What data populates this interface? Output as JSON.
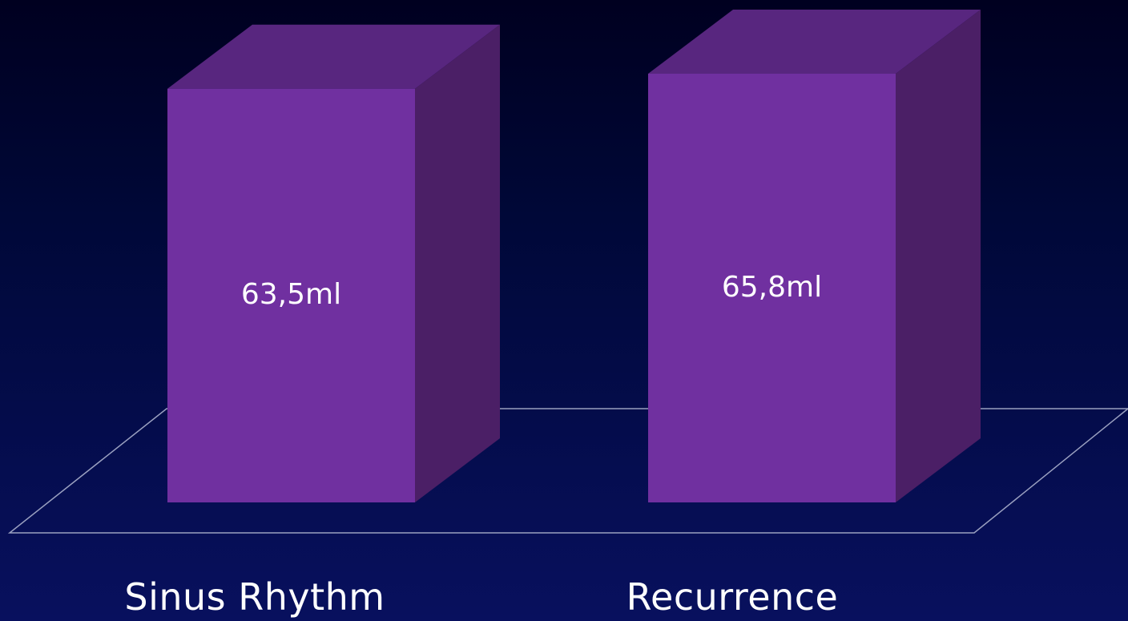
{
  "chart_data": {
    "type": "bar",
    "categories": [
      "Sinus Rhythm",
      "Recurrence"
    ],
    "values": [
      63.5,
      65.8
    ],
    "data_labels": [
      "63,5ml",
      "65,8ml"
    ],
    "title": "",
    "xlabel": "",
    "ylabel": "",
    "ylim": [
      0,
      65.8
    ],
    "grid": false,
    "legend": "none",
    "three_d": true
  },
  "colors": {
    "bar_front": "#7030a0",
    "bar_side": "#4b1f66",
    "bar_top": "#58267f",
    "floor_line": "#9aa0c0",
    "text": "#ffffff"
  }
}
